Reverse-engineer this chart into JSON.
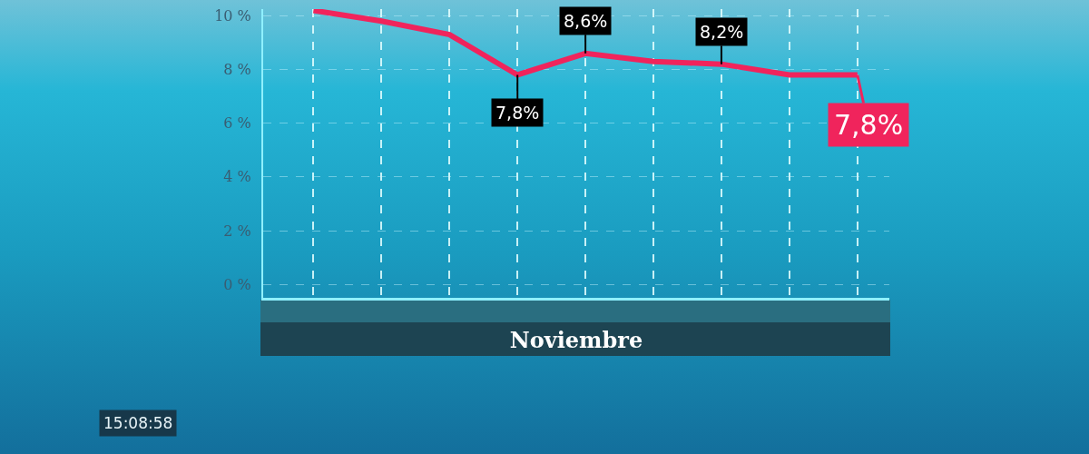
{
  "chart_data": {
    "type": "line",
    "xlabel": "Noviembre",
    "categories": [
      null,
      null,
      null,
      null,
      null,
      null,
      null,
      null,
      null
    ],
    "series": [
      {
        "color": "#f0245c",
        "values": [
          10.2,
          9.8,
          9.3,
          7.8,
          8.6,
          8.3,
          8.2,
          7.8,
          7.8
        ],
        "value_labels": [
          null,
          null,
          null,
          "7,8%",
          "8,6%",
          null,
          "8,2%",
          null,
          "7,8%"
        ]
      }
    ],
    "ylim": [
      -0.5,
      10.25
    ],
    "yticks": [
      {
        "value": 0,
        "label": "0 %"
      },
      {
        "value": 2,
        "label": "2 %"
      },
      {
        "value": 4,
        "label": "4 %"
      },
      {
        "value": 6,
        "label": "6 %"
      },
      {
        "value": 8,
        "label": "8 %"
      },
      {
        "value": 10,
        "label": "10 %"
      }
    ],
    "grid": true,
    "annotations": [
      "15:08:58"
    ]
  }
}
